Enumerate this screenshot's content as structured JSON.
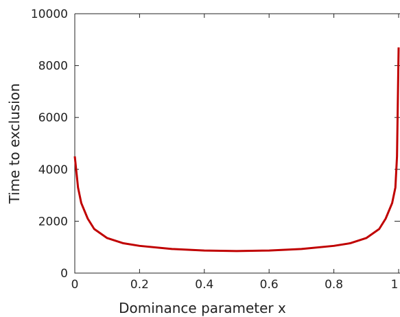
{
  "chart_data": {
    "type": "line",
    "xlabel": "Dominance  parameter   x",
    "ylabel": "Time to exclusion",
    "x": [
      0,
      0.005,
      0.01,
      0.02,
      0.04,
      0.06,
      0.1,
      0.15,
      0.2,
      0.3,
      0.4,
      0.5,
      0.6,
      0.7,
      0.8,
      0.85,
      0.9,
      0.94,
      0.96,
      0.98,
      0.99,
      0.995,
      1.0
    ],
    "series": [
      {
        "color": "#c00000",
        "values": [
          4500,
          3900,
          3300,
          2700,
          2100,
          1700,
          1350,
          1150,
          1050,
          930,
          870,
          850,
          870,
          930,
          1050,
          1150,
          1350,
          1700,
          2100,
          2700,
          3300,
          4500,
          8700
        ]
      }
    ],
    "xlim": [
      0,
      1
    ],
    "ylim": [
      0,
      10000
    ],
    "xticks": [
      0,
      0.2,
      0.4,
      0.6,
      0.8,
      1
    ],
    "yticks": [
      0,
      2000,
      4000,
      6000,
      8000,
      10000
    ]
  }
}
